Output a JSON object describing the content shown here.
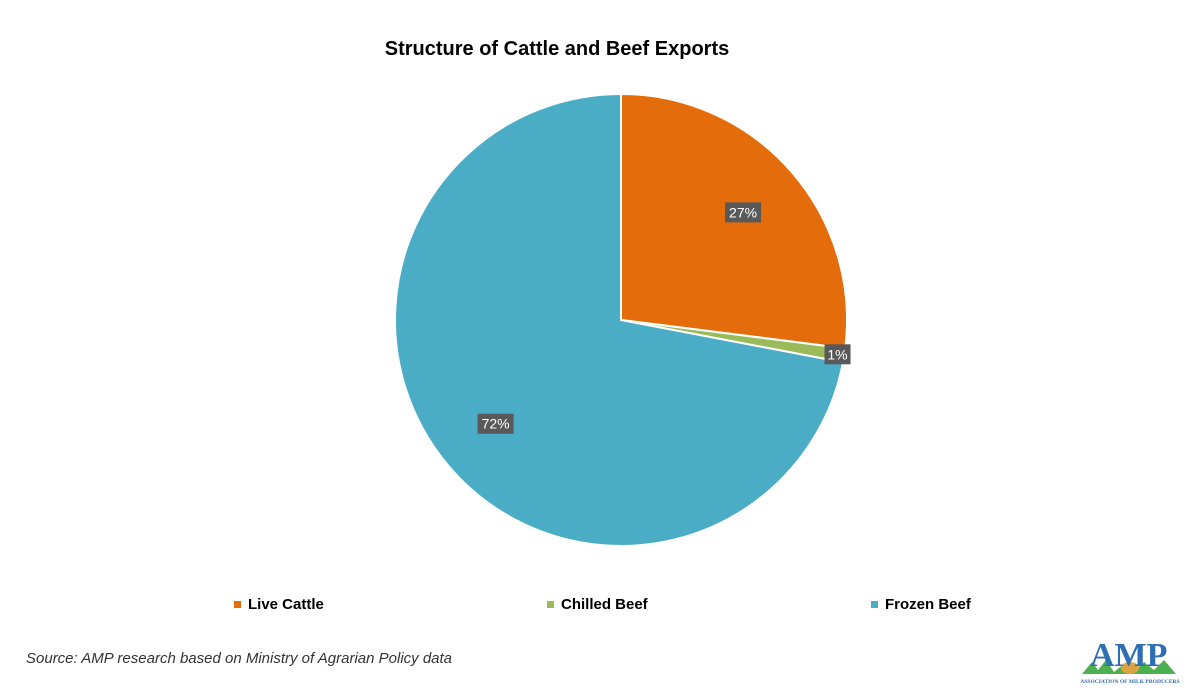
{
  "chart_data": {
    "type": "pie",
    "title": "Structure of Cattle and Beef Exports",
    "slices": [
      {
        "label": "Live Cattle",
        "value": 27,
        "data_label": "27%",
        "color": "#e46c0a"
      },
      {
        "label": "Chilled Beef",
        "value": 1,
        "data_label": "1%",
        "color": "#9bbb59"
      },
      {
        "label": "Frozen Beef",
        "value": 72,
        "data_label": "72%",
        "color": "#4bacc6"
      }
    ],
    "legend_position": "bottom",
    "data_label_style": {
      "background": "#595959",
      "color": "#ffffff"
    }
  },
  "source_note": "Source: AMP research based on Ministry of Agrarian Policy data",
  "logo": {
    "text": "AMP",
    "subtext": "ASSOCIATION OF MILK PRODUCERS"
  }
}
